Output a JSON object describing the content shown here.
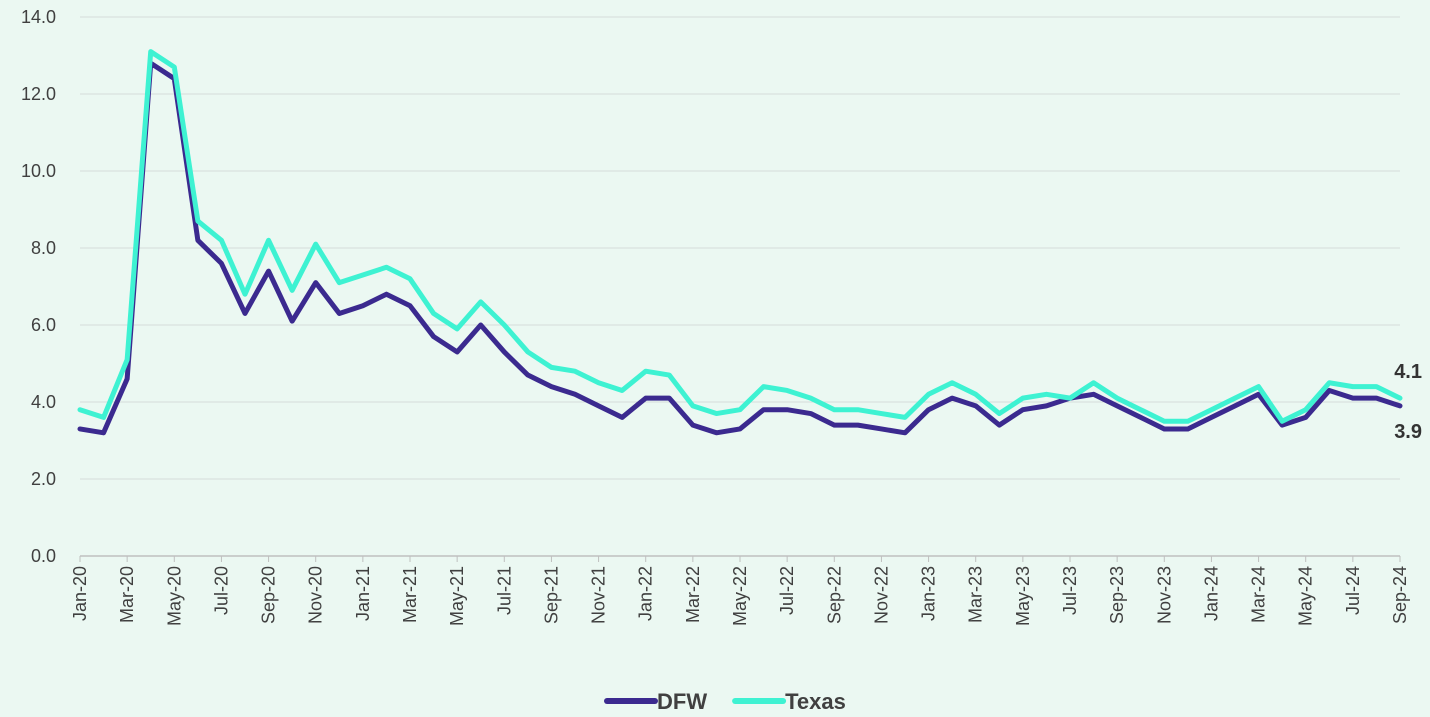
{
  "chart_data": {
    "type": "line",
    "categories": [
      "Jan-20",
      null,
      "Mar-20",
      null,
      "May-20",
      null,
      "Jul-20",
      null,
      "Sep-20",
      null,
      "Nov-20",
      null,
      "Jan-21",
      null,
      "Mar-21",
      null,
      "May-21",
      null,
      "Jul-21",
      null,
      "Sep-21",
      null,
      "Nov-21",
      null,
      "Jan-22",
      null,
      "Mar-22",
      null,
      "May-22",
      null,
      "Jul-22",
      null,
      "Sep-22",
      null,
      "Nov-22",
      null,
      "Jan-23",
      null,
      "Mar-23",
      null,
      "May-23",
      null,
      "Jul-23",
      null,
      "Sep-23",
      null,
      "Nov-23",
      null,
      "Jan-24",
      null,
      "Mar-24",
      null,
      "May-24",
      null,
      "Jul-24",
      null,
      "Sep-24"
    ],
    "series": [
      {
        "name": "DFW",
        "color": "#3b2a8f",
        "values": [
          3.3,
          3.2,
          4.6,
          12.8,
          12.4,
          8.2,
          7.6,
          6.3,
          7.4,
          6.1,
          7.1,
          6.3,
          6.5,
          6.8,
          6.5,
          5.7,
          5.3,
          6.0,
          5.3,
          4.7,
          4.4,
          4.2,
          3.9,
          3.6,
          4.1,
          4.1,
          3.4,
          3.2,
          3.3,
          3.8,
          3.8,
          3.7,
          3.4,
          3.4,
          3.3,
          3.2,
          3.8,
          4.1,
          3.9,
          3.4,
          3.8,
          3.9,
          4.1,
          4.2,
          3.9,
          3.6,
          3.3,
          3.3,
          3.6,
          3.9,
          4.2,
          3.4,
          3.6,
          4.3,
          4.1,
          4.1,
          3.9
        ]
      },
      {
        "name": "Texas",
        "color": "#3ef2d2",
        "values": [
          3.8,
          3.6,
          5.1,
          13.1,
          12.7,
          8.7,
          8.2,
          6.8,
          8.2,
          6.9,
          8.1,
          7.1,
          7.3,
          7.5,
          7.2,
          6.3,
          5.9,
          6.6,
          6.0,
          5.3,
          4.9,
          4.8,
          4.5,
          4.3,
          4.8,
          4.7,
          3.9,
          3.7,
          3.8,
          4.4,
          4.3,
          4.1,
          3.8,
          3.8,
          3.7,
          3.6,
          4.2,
          4.5,
          4.2,
          3.7,
          4.1,
          4.2,
          4.1,
          4.5,
          4.1,
          3.8,
          3.5,
          3.5,
          3.8,
          4.1,
          4.4,
          3.5,
          3.8,
          4.5,
          4.4,
          4.4,
          4.1
        ]
      }
    ],
    "ylim": [
      0,
      14
    ],
    "yticks": [
      {
        "value": 0,
        "label": "0.0"
      },
      {
        "value": 2,
        "label": "2.0"
      },
      {
        "value": 4,
        "label": "4.0"
      },
      {
        "value": 6,
        "label": "6.0"
      },
      {
        "value": 8,
        "label": "8.0"
      },
      {
        "value": 10,
        "label": "10.0"
      },
      {
        "value": 12,
        "label": "12.0"
      },
      {
        "value": 14,
        "label": "14.0"
      }
    ],
    "grid": true,
    "legend": "bottom",
    "end_labels": true
  }
}
